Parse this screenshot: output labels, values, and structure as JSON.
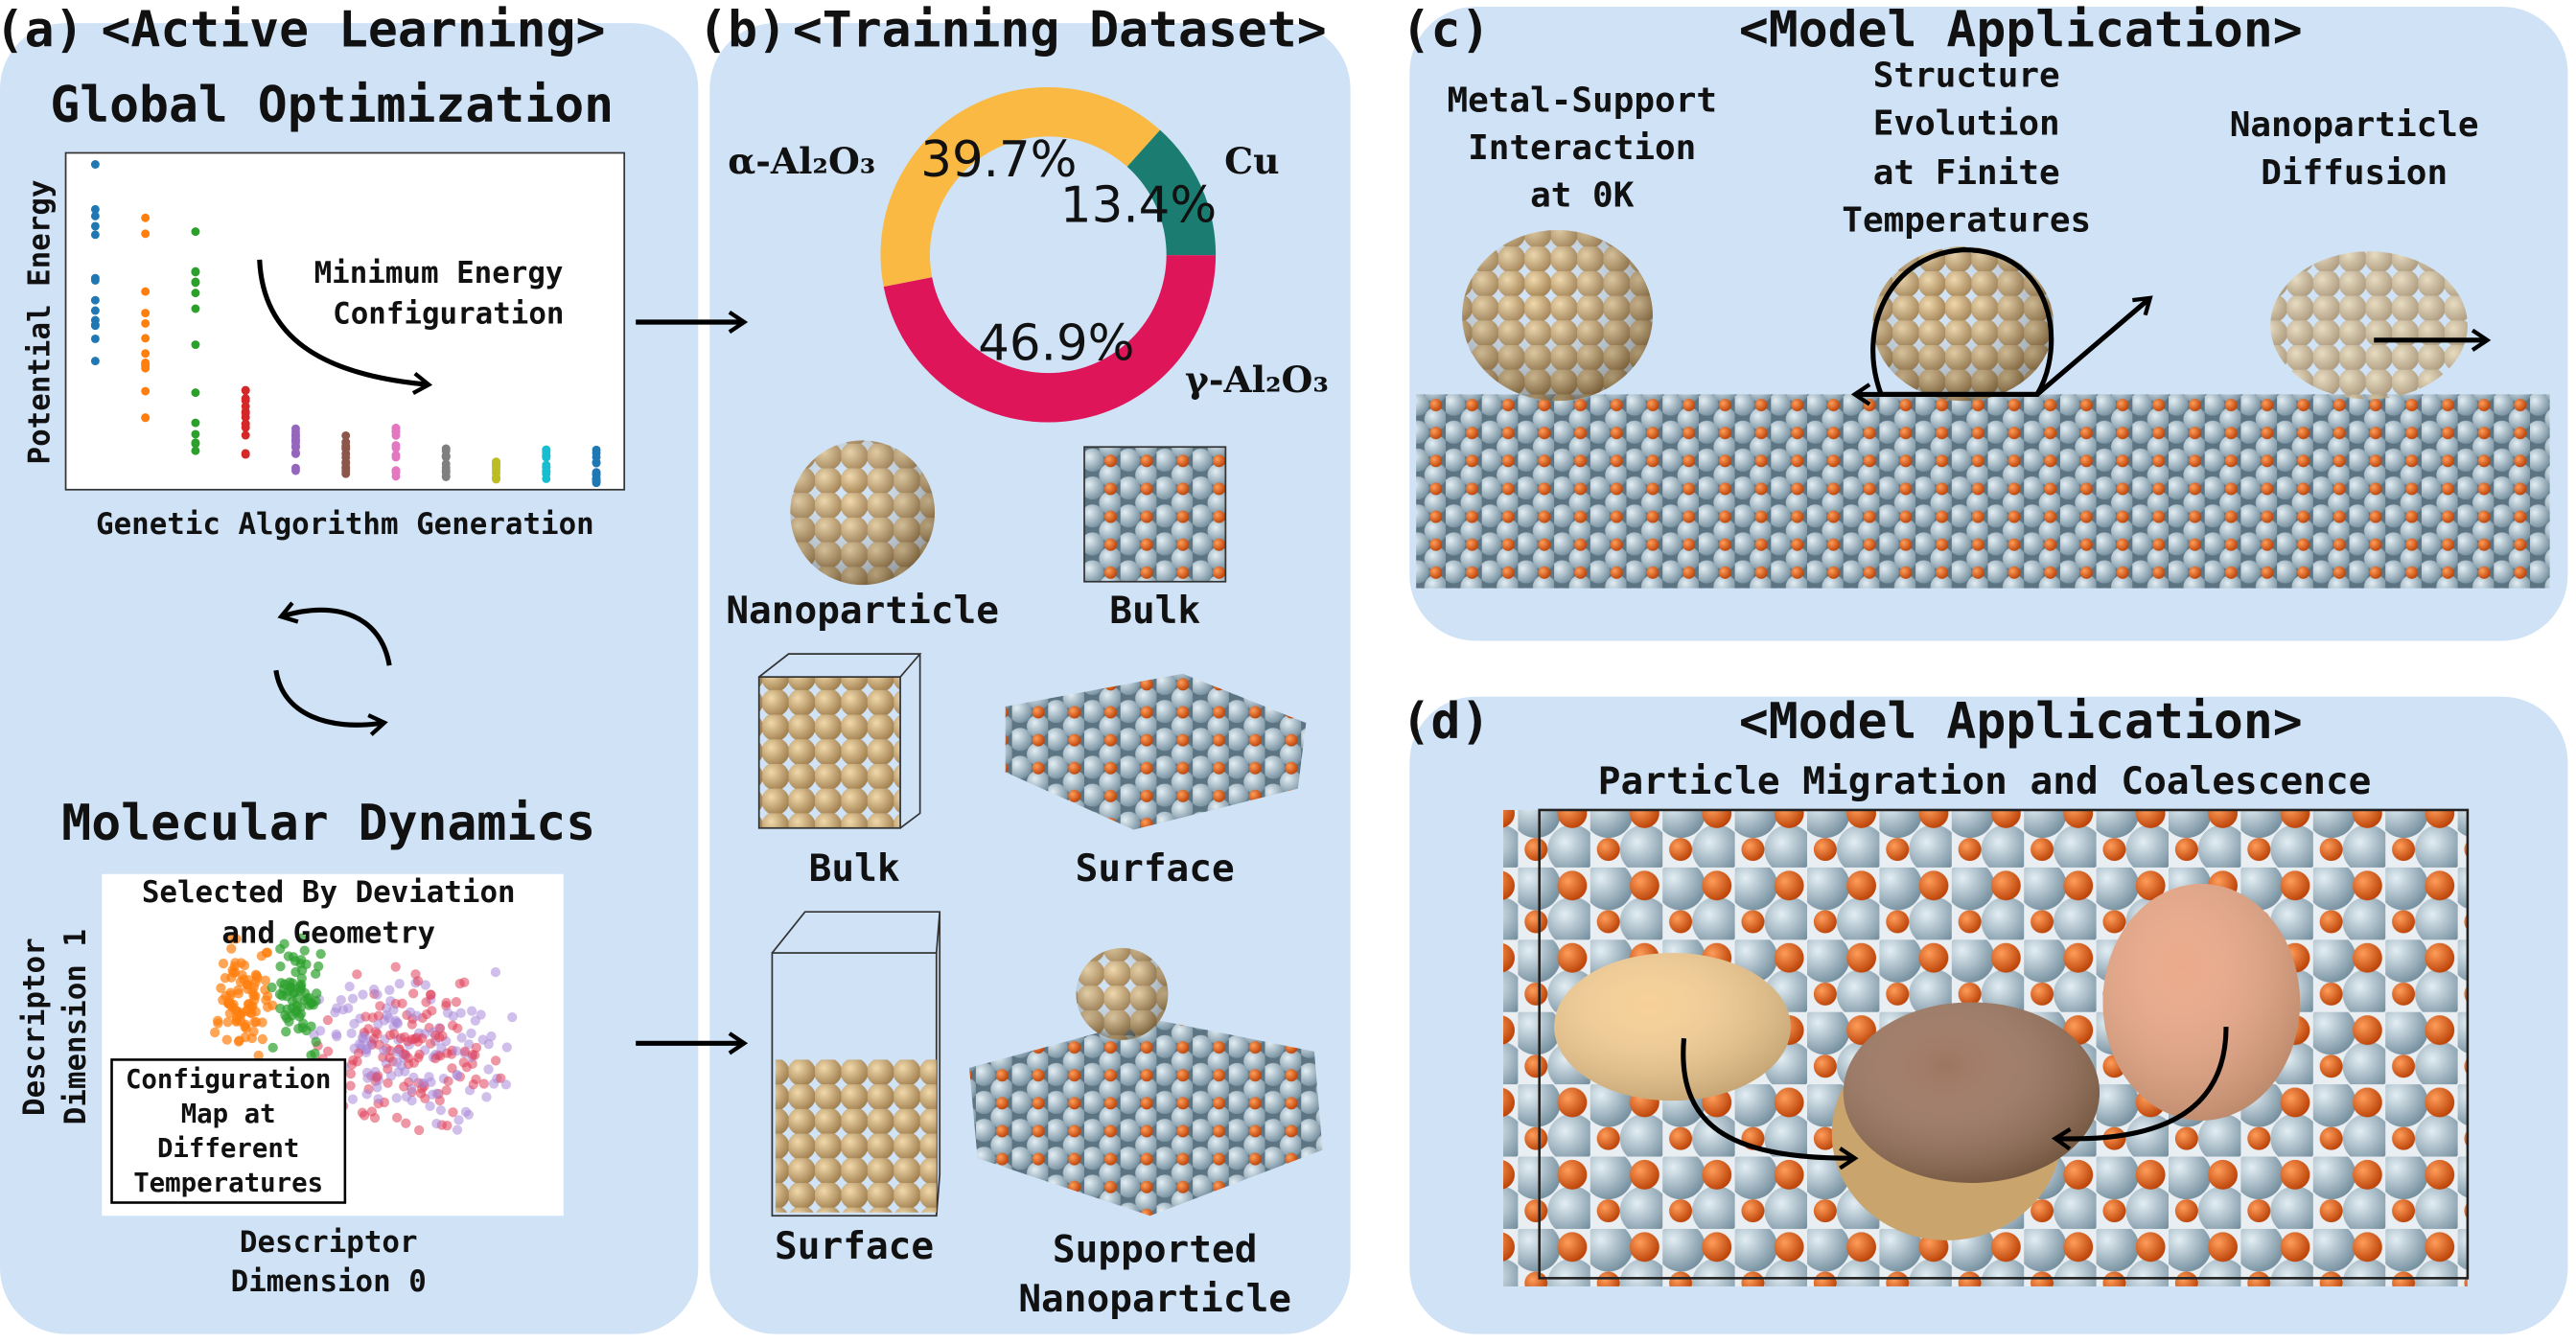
{
  "panels": {
    "a": {
      "label": "(a)",
      "title": "<Active Learning>",
      "global_optimization": {
        "heading": "Global Optimization",
        "y_label": "Potential Energy",
        "x_label": "Genetic Algorithm Generation",
        "annotation": [
          "Minimum Energy",
          "Configuration"
        ]
      },
      "molecular_dynamics": {
        "heading": "Molecular Dynamics",
        "annotation": [
          "Selected By Deviation",
          "and Geometry"
        ],
        "inset": [
          "Configuration",
          "Map at",
          "Different",
          "Temperatures"
        ],
        "y_label": [
          "Descriptor",
          "Dimension 1"
        ],
        "x_label": [
          "Descriptor",
          "Dimension 0"
        ]
      }
    },
    "b": {
      "label": "(b)",
      "title": "<Training Dataset>",
      "chart_data": {
        "type": "pie",
        "categories": [
          "α-Al₂O₃",
          "Cu",
          "γ-Al₂O₃"
        ],
        "values": [
          39.7,
          13.4,
          46.9
        ],
        "value_labels": [
          "39.7%",
          "13.4%",
          "46.9%"
        ],
        "colors": [
          "#f9b942",
          "#1b7d71",
          "#de1558"
        ]
      },
      "structures": [
        [
          "Nanoparticle"
        ],
        [
          "Bulk"
        ],
        [
          "Bulk"
        ],
        [
          "Surface"
        ],
        [
          "Surface"
        ],
        [
          "Supported",
          "Nanoparticle"
        ]
      ]
    },
    "c": {
      "label": "(c)",
      "title": "<Model Application>",
      "captions": [
        [
          "Metal-Support",
          "Interaction",
          "at 0K"
        ],
        [
          "Structure",
          "Evolution",
          "at Finite",
          "Temperatures"
        ],
        [
          "Nanoparticle",
          "Diffusion"
        ]
      ]
    },
    "d": {
      "label": "(d)",
      "title": "<Model Application>",
      "subtitle": "Particle Migration and Coalescence"
    }
  }
}
